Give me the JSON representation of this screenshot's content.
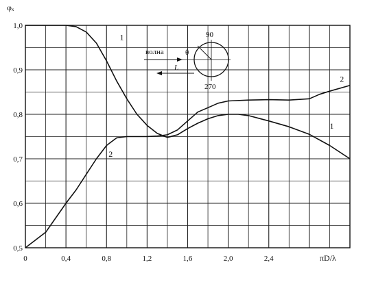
{
  "chart_data": {
    "type": "line",
    "title": "",
    "ylabel": "φₓ",
    "xlabel": "πD/λ",
    "xlim": [
      0,
      3.2
    ],
    "ylim": [
      0.5,
      1.0
    ],
    "grid": true,
    "x_ticks": [
      "0",
      "0,4",
      "0,8",
      "1,2",
      "1,6",
      "2,0",
      "2,4"
    ],
    "y_ticks": [
      "0,5",
      "0,6",
      "0,7",
      "0,8",
      "0,9",
      "1,0"
    ],
    "series": [
      {
        "name": "1",
        "color": "#111111",
        "x": [
          0,
          0.2,
          0.4,
          0.5,
          0.6,
          0.7,
          0.8,
          0.9,
          1.0,
          1.1,
          1.2,
          1.3,
          1.4,
          1.5,
          1.6,
          1.7,
          1.8,
          1.9,
          2.0,
          2.1,
          2.2,
          2.4,
          2.6,
          2.8,
          3.0,
          3.2
        ],
        "y": [
          1.0,
          1.0,
          1.0,
          0.997,
          0.985,
          0.96,
          0.92,
          0.875,
          0.835,
          0.8,
          0.775,
          0.757,
          0.748,
          0.754,
          0.768,
          0.78,
          0.79,
          0.797,
          0.8,
          0.8,
          0.797,
          0.785,
          0.772,
          0.755,
          0.73,
          0.7
        ]
      },
      {
        "name": "2",
        "color": "#111111",
        "x": [
          0,
          0.2,
          0.4,
          0.5,
          0.6,
          0.7,
          0.8,
          0.9,
          1.0,
          1.1,
          1.2,
          1.3,
          1.4,
          1.5,
          1.6,
          1.7,
          1.8,
          1.9,
          2.0,
          2.2,
          2.4,
          2.6,
          2.8,
          2.9,
          3.0,
          3.2
        ],
        "y": [
          0.5,
          0.535,
          0.6,
          0.63,
          0.665,
          0.7,
          0.73,
          0.747,
          0.75,
          0.75,
          0.75,
          0.751,
          0.754,
          0.765,
          0.785,
          0.805,
          0.815,
          0.825,
          0.83,
          0.832,
          0.833,
          0.832,
          0.835,
          0.845,
          0.852,
          0.865
        ]
      }
    ],
    "annotations": {
      "inset_wave": "волна",
      "inset_length": "L",
      "inset_theta": "θ",
      "inset_top": "90",
      "inset_bottom": "270"
    }
  }
}
